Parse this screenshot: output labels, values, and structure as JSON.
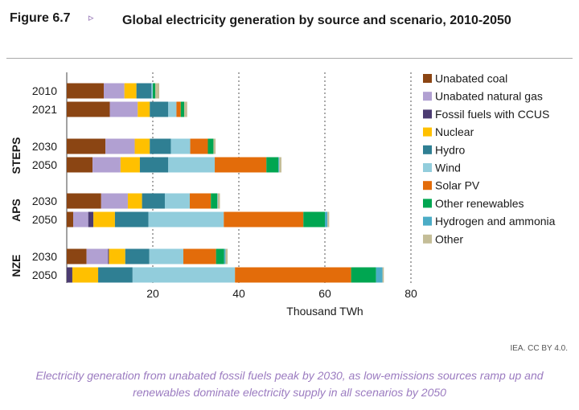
{
  "figure": {
    "label": "Figure 6.7",
    "arrow": "▹",
    "title": "Global electricity generation by source and scenario, 2010-2050"
  },
  "credit": "IEA. CC BY 4.0.",
  "caption": "Electricity generation from unabated fossil fuels peak by 2030, as low-emissions sources ramp up and renewables dominate electricity supply in all scenarios by 2050",
  "chart_data": {
    "type": "bar",
    "orientation": "horizontal",
    "stacked": true,
    "xlabel": "Thousand TWh",
    "xlim": [
      0,
      80
    ],
    "xticks": [
      20,
      40,
      60,
      80
    ],
    "grid": "vertical dotted at major ticks",
    "legend_position": "right",
    "groups": [
      {
        "name": "",
        "categories": [
          "2010",
          "2021"
        ]
      },
      {
        "name": "STEPS",
        "categories": [
          "2030",
          "2050"
        ]
      },
      {
        "name": "APS",
        "categories": [
          "2030",
          "2050"
        ]
      },
      {
        "name": "NZE",
        "categories": [
          "2030",
          "2050"
        ]
      }
    ],
    "categories": [
      "2010",
      "2021",
      "2030",
      "2050",
      "2030",
      "2050",
      "2030",
      "2050"
    ],
    "series": [
      {
        "name": "Unabated coal",
        "color": "#8b4513",
        "values": [
          8.6,
          10.0,
          9.0,
          6.0,
          8.0,
          1.5,
          4.6,
          0.0
        ]
      },
      {
        "name": "Unabated natural gas",
        "color": "#b1a0d2",
        "values": [
          4.8,
          6.5,
          6.8,
          6.5,
          6.2,
          3.5,
          5.0,
          0.0
        ]
      },
      {
        "name": "Fossil fuels with CCUS",
        "color": "#4b3b71",
        "values": [
          0.0,
          0.0,
          0.0,
          0.0,
          0.0,
          1.2,
          0.2,
          1.3
        ]
      },
      {
        "name": "Nuclear",
        "color": "#ffc000",
        "values": [
          2.8,
          2.8,
          3.5,
          4.5,
          3.3,
          5.0,
          3.8,
          6.0
        ]
      },
      {
        "name": "Hydro",
        "color": "#2f7f93",
        "values": [
          3.5,
          4.3,
          4.9,
          6.6,
          5.3,
          7.8,
          5.6,
          8.0
        ]
      },
      {
        "name": "Wind",
        "color": "#92cddc",
        "values": [
          0.3,
          1.9,
          4.5,
          10.8,
          5.8,
          17.5,
          7.9,
          23.8
        ]
      },
      {
        "name": "Solar PV",
        "color": "#e36c0a",
        "values": [
          0.0,
          1.0,
          4.1,
          12.0,
          4.9,
          18.5,
          7.6,
          27.0
        ]
      },
      {
        "name": "Other renewables",
        "color": "#00a651",
        "values": [
          0.6,
          0.8,
          1.3,
          2.8,
          1.5,
          5.0,
          1.9,
          5.8
        ]
      },
      {
        "name": "Hydrogen and ammonia",
        "color": "#4bacc6",
        "values": [
          0.0,
          0.0,
          0.0,
          0.2,
          0.1,
          0.6,
          0.3,
          1.5
        ]
      },
      {
        "name": "Other",
        "color": "#c4bd97",
        "values": [
          0.9,
          0.7,
          0.5,
          0.5,
          0.5,
          0.4,
          0.5,
          0.3
        ]
      }
    ]
  }
}
